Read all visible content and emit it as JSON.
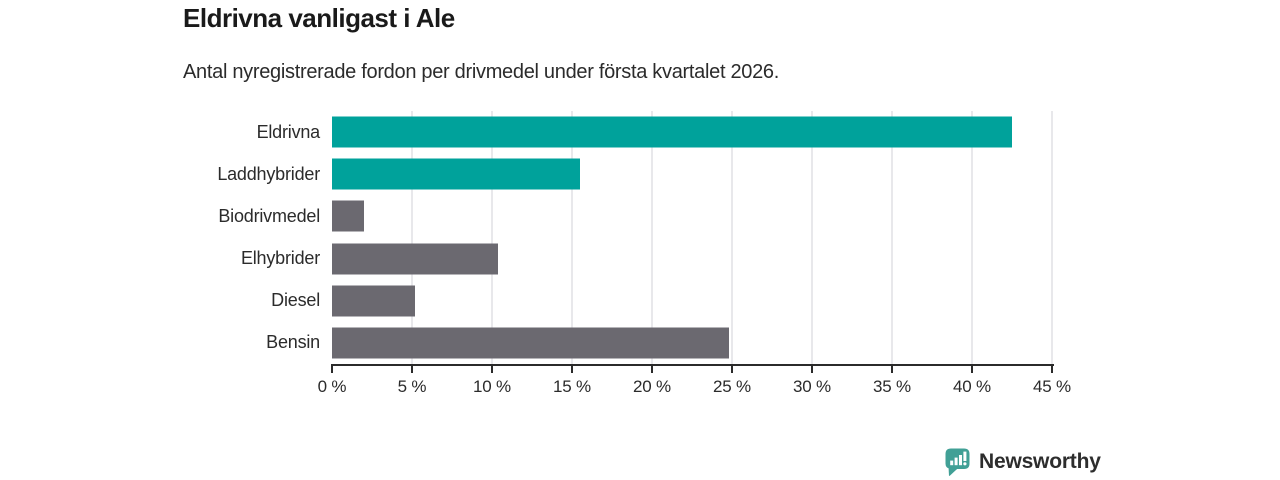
{
  "header": {
    "title": "Eldrivna vanligast i Ale",
    "subtitle": "Antal nyregistrerade fordon per drivmedel under första kvartalet 2026."
  },
  "chart_data": {
    "type": "bar",
    "orientation": "horizontal",
    "title": "Eldrivna vanligast i Ale",
    "subtitle": "Antal nyregistrerade fordon per drivmedel under första kvartalet 2026.",
    "categories": [
      "Eldrivna",
      "Laddhybrider",
      "Biodrivmedel",
      "Elhybrider",
      "Diesel",
      "Bensin"
    ],
    "values": [
      42.5,
      15.5,
      2.0,
      10.4,
      5.2,
      24.8
    ],
    "unit": "%",
    "bar_colors": [
      "#00a29b",
      "#00a29b",
      "#6b6970",
      "#6b6970",
      "#6b6970",
      "#6b6970"
    ],
    "xlim": [
      0,
      45
    ],
    "x_ticks": [
      0,
      5,
      10,
      15,
      20,
      25,
      30,
      35,
      40,
      45
    ],
    "x_tick_labels": [
      "0 %",
      "5 %",
      "10 %",
      "15 %",
      "20 %",
      "25 %",
      "30 %",
      "35 %",
      "40 %",
      "45 %"
    ],
    "grid": "vertical-only",
    "legend": "none"
  },
  "colors": {
    "accent_teal": "#00a29b",
    "bar_gray": "#6b6970",
    "gridline": "#e8e8eb",
    "axis": "#2b2b2b",
    "logo_icon": "#41a096",
    "logo_text": "#35867d"
  },
  "footer": {
    "logo_text": "Newsworthy",
    "logo_icon": "newsworthy-speech-bubble-bar-chart-icon"
  }
}
